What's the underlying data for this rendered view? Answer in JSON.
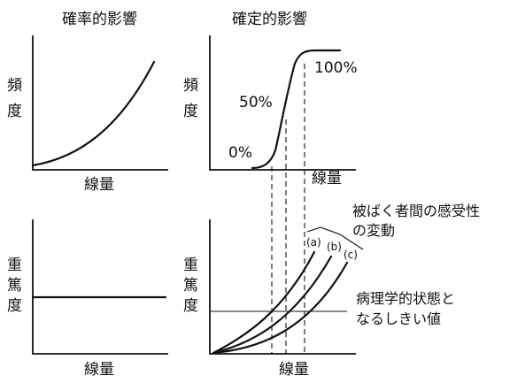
{
  "panels": {
    "stochastic": {
      "title": "確率的影響",
      "frequency_axis": [
        "頻",
        "度"
      ],
      "dose_axis": "線量",
      "severity_axis": [
        "重",
        "篤",
        "度"
      ],
      "severity_dose_axis": "線量"
    },
    "deterministic": {
      "title": "確定的影響",
      "frequency_axis": [
        "頻",
        "度"
      ],
      "dose_axis": "線量",
      "pct_0": "0%",
      "pct_50": "50%",
      "pct_100": "100%",
      "severity_axis": [
        "重",
        "篤",
        "度"
      ],
      "severity_dose_axis": "線量",
      "curve_labels": [
        "(a)",
        "(b)",
        "(c)"
      ],
      "sensitivity_note": [
        "被ばく者間の感受性",
        "の変動"
      ],
      "threshold_note": [
        "病理学的状態と",
        "なるしきい値"
      ]
    }
  }
}
